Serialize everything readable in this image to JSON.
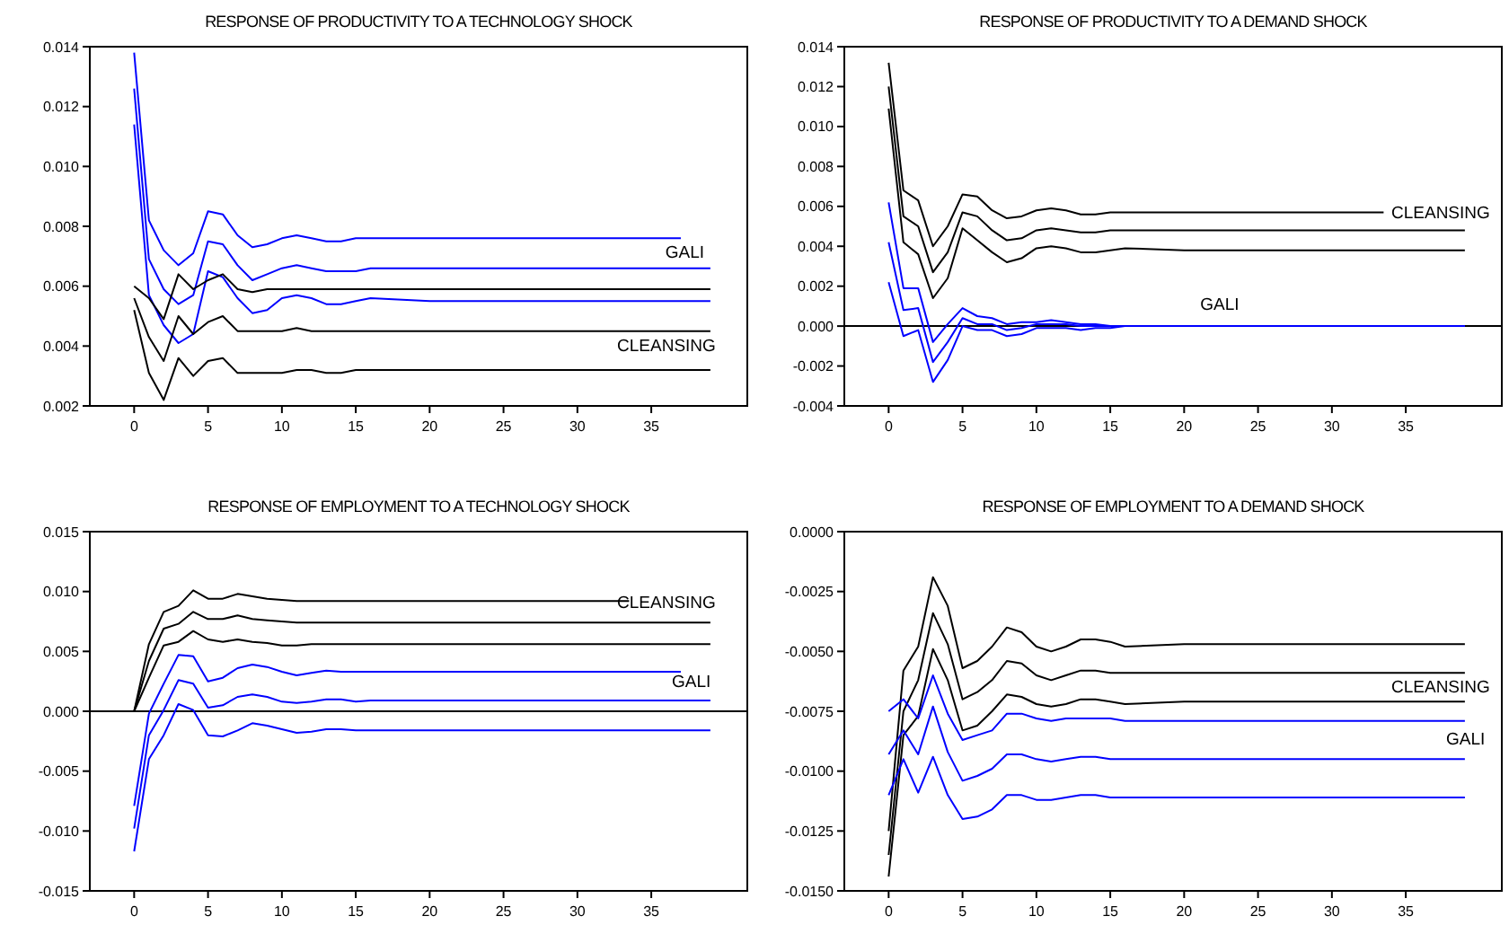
{
  "chart_data": [
    {
      "type": "line",
      "title": "RESPONSE OF PRODUCTIVITY TO A TECHNOLOGY SHOCK",
      "x": [
        0,
        1,
        2,
        3,
        4,
        5,
        6,
        7,
        8,
        9,
        10,
        11,
        12,
        13,
        14,
        15,
        16,
        20,
        25,
        30,
        35,
        39
      ],
      "xlim": [
        -3,
        41.5
      ],
      "xticks": [
        0,
        5,
        10,
        15,
        20,
        25,
        30,
        35
      ],
      "ylim": [
        0.002,
        0.014
      ],
      "yticks": [
        {
          "value": 0.002,
          "label": "0.002"
        },
        {
          "value": 0.004,
          "label": "0.004"
        },
        {
          "value": 0.006,
          "label": "0.006"
        },
        {
          "value": 0.008,
          "label": "0.008"
        },
        {
          "value": 0.01,
          "label": "0.010"
        },
        {
          "value": 0.012,
          "label": "0.012"
        },
        {
          "value": 0.014,
          "label": "0.014"
        }
      ],
      "grid": false,
      "line_style": "solid",
      "series": [
        {
          "color": "#0000ff",
          "x": [
            0,
            1,
            2,
            3,
            4,
            5,
            6,
            7,
            8,
            9,
            10,
            11,
            12,
            13,
            14,
            15,
            16,
            20,
            25,
            30,
            35,
            37
          ],
          "values": [
            0.0138,
            0.0082,
            0.0072,
            0.0067,
            0.0071,
            0.0085,
            0.0084,
            0.0077,
            0.0073,
            0.0074,
            0.0076,
            0.0077,
            0.0076,
            0.0075,
            0.0075,
            0.0076,
            0.0076,
            0.0076,
            0.0076,
            0.0076,
            0.0076,
            0.0076
          ]
        },
        {
          "color": "#0000ff",
          "values": [
            0.0126,
            0.0069,
            0.0059,
            0.0054,
            0.0057,
            0.0075,
            0.0074,
            0.0067,
            0.0062,
            0.0064,
            0.0066,
            0.0067,
            0.0066,
            0.0065,
            0.0065,
            0.0065,
            0.0066,
            0.0066,
            0.0066,
            0.0066,
            0.0066,
            0.0066
          ]
        },
        {
          "color": "#0000ff",
          "values": [
            0.0114,
            0.0057,
            0.0047,
            0.0041,
            0.0044,
            0.0065,
            0.0063,
            0.0056,
            0.0051,
            0.0052,
            0.0056,
            0.0057,
            0.0056,
            0.0054,
            0.0054,
            0.0055,
            0.0056,
            0.0055,
            0.0055,
            0.0055,
            0.0055,
            0.0055
          ]
        },
        {
          "color": "#000000",
          "values": [
            0.006,
            0.0056,
            0.0049,
            0.0064,
            0.0059,
            0.0062,
            0.0064,
            0.0059,
            0.0058,
            0.0059,
            0.0059,
            0.0059,
            0.0059,
            0.0059,
            0.0059,
            0.0059,
            0.0059,
            0.0059,
            0.0059,
            0.0059,
            0.0059,
            0.0059
          ]
        },
        {
          "color": "#000000",
          "values": [
            0.0056,
            0.0043,
            0.0035,
            0.005,
            0.0044,
            0.0048,
            0.005,
            0.0045,
            0.0045,
            0.0045,
            0.0045,
            0.0046,
            0.0045,
            0.0045,
            0.0045,
            0.0045,
            0.0045,
            0.0045,
            0.0045,
            0.0045,
            0.0045,
            0.0045
          ]
        },
        {
          "color": "#000000",
          "values": [
            0.0052,
            0.0031,
            0.0022,
            0.0036,
            0.003,
            0.0035,
            0.0036,
            0.0031,
            0.0031,
            0.0031,
            0.0031,
            0.0032,
            0.0032,
            0.0031,
            0.0031,
            0.0032,
            0.0032,
            0.0032,
            0.0032,
            0.0032,
            0.0032,
            0.0032
          ]
        }
      ],
      "annotations": [
        "GALI",
        "CLEANSING"
      ]
    },
    {
      "type": "line",
      "title": "RESPONSE OF PRODUCTIVITY TO A DEMAND SHOCK",
      "x": [
        0,
        1,
        2,
        3,
        4,
        5,
        6,
        7,
        8,
        9,
        10,
        11,
        12,
        13,
        14,
        15,
        16,
        20,
        25,
        30,
        35,
        39
      ],
      "xlim": [
        -3,
        41.5
      ],
      "xticks": [
        0,
        5,
        10,
        15,
        20,
        25,
        30,
        35
      ],
      "ylim": [
        -0.004,
        0.014
      ],
      "yticks": [
        {
          "value": -0.004,
          "label": "-0.004"
        },
        {
          "value": -0.002,
          "label": "-0.002"
        },
        {
          "value": 0,
          "label": "0.000"
        },
        {
          "value": 0.002,
          "label": "0.002"
        },
        {
          "value": 0.004,
          "label": "0.004"
        },
        {
          "value": 0.006,
          "label": "0.006"
        },
        {
          "value": 0.008,
          "label": "0.008"
        },
        {
          "value": 0.01,
          "label": "0.010"
        },
        {
          "value": 0.012,
          "label": "0.012"
        },
        {
          "value": 0.014,
          "label": "0.014"
        }
      ],
      "grid": false,
      "line_style": "solid",
      "ref_lines": [
        {
          "axis": "y",
          "value": 0,
          "color": "#000000"
        }
      ],
      "series": [
        {
          "color": "#000000",
          "x": [
            0,
            1,
            2,
            3,
            4,
            5,
            6,
            7,
            8,
            9,
            10,
            11,
            12,
            13,
            14,
            15,
            16,
            20,
            25,
            30,
            33.5
          ],
          "values": [
            0.0132,
            0.0068,
            0.0063,
            0.004,
            0.005,
            0.0066,
            0.0065,
            0.0058,
            0.0054,
            0.0055,
            0.0058,
            0.0059,
            0.0058,
            0.0056,
            0.0056,
            0.0057,
            0.0057,
            0.0057,
            0.0057,
            0.0057,
            0.0057
          ]
        },
        {
          "color": "#000000",
          "values": [
            0.012,
            0.0055,
            0.005,
            0.0027,
            0.0037,
            0.0057,
            0.0055,
            0.0048,
            0.0043,
            0.0044,
            0.0048,
            0.0049,
            0.0048,
            0.0047,
            0.0047,
            0.0048,
            0.0048,
            0.0048,
            0.0048,
            0.0048,
            0.0048,
            0.0048
          ]
        },
        {
          "color": "#000000",
          "values": [
            0.0109,
            0.0042,
            0.0036,
            0.0014,
            0.0024,
            0.0049,
            0.0043,
            0.0037,
            0.0032,
            0.0034,
            0.0039,
            0.004,
            0.0039,
            0.0037,
            0.0037,
            0.0038,
            0.0039,
            0.0038,
            0.0038,
            0.0038,
            0.0038,
            0.0038
          ]
        },
        {
          "color": "#0000ff",
          "values": [
            0.0062,
            0.0019,
            0.0019,
            -0.0008,
            0.0001,
            0.0009,
            0.0005,
            0.0004,
            0.0001,
            0.0002,
            0.0002,
            0.0003,
            0.0002,
            0.0001,
            0.0001,
            0,
            0,
            0,
            0,
            0,
            0,
            0
          ]
        },
        {
          "color": "#0000ff",
          "values": [
            0.0042,
            0.0008,
            0.0009,
            -0.0018,
            -0.0008,
            0.0004,
            0.0001,
            0.0001,
            -0.0002,
            -0.0001,
            0.0001,
            0.0001,
            0.0001,
            0,
            0,
            0,
            0,
            0,
            0,
            0,
            0,
            0
          ]
        },
        {
          "color": "#0000ff",
          "values": [
            0.0022,
            -0.0005,
            -0.0002,
            -0.0028,
            -0.0017,
            0,
            -0.0002,
            -0.0002,
            -0.0005,
            -0.0004,
            -0.0001,
            -0.0001,
            -0.0001,
            -0.0002,
            -0.0001,
            -0.0001,
            0,
            0,
            0,
            0,
            0,
            0
          ]
        }
      ],
      "annotations": [
        "CLEANSING",
        "GALI"
      ]
    },
    {
      "type": "line",
      "title": "RESPONSE OF EMPLOYMENT TO A TECHNOLOGY SHOCK",
      "x": [
        0,
        1,
        2,
        3,
        4,
        5,
        6,
        7,
        8,
        9,
        10,
        11,
        12,
        13,
        14,
        15,
        16,
        20,
        25,
        30,
        35,
        39
      ],
      "xlim": [
        -3,
        41.5
      ],
      "xticks": [
        0,
        5,
        10,
        15,
        20,
        25,
        30,
        35
      ],
      "ylim": [
        -0.015,
        0.015
      ],
      "yticks": [
        {
          "value": -0.015,
          "label": "-0.015"
        },
        {
          "value": -0.01,
          "label": "-0.010"
        },
        {
          "value": -0.005,
          "label": "-0.005"
        },
        {
          "value": 0,
          "label": "0.000"
        },
        {
          "value": 0.005,
          "label": "0.005"
        },
        {
          "value": 0.01,
          "label": "0.010"
        },
        {
          "value": 0.015,
          "label": "0.015"
        }
      ],
      "grid": false,
      "line_style": "solid",
      "ref_lines": [
        {
          "axis": "y",
          "value": 0,
          "color": "#000000"
        }
      ],
      "series": [
        {
          "color": "#000000",
          "x": [
            0,
            1,
            2,
            3,
            4,
            5,
            6,
            7,
            8,
            9,
            10,
            11,
            12,
            13,
            14,
            15,
            16,
            20,
            25,
            30,
            33.5
          ],
          "values": [
            0,
            0.0056,
            0.0083,
            0.0088,
            0.0101,
            0.0094,
            0.0094,
            0.0098,
            0.0096,
            0.0094,
            0.0093,
            0.0092,
            0.0092,
            0.0092,
            0.0092,
            0.0092,
            0.0092,
            0.0092,
            0.0092,
            0.0092,
            0.0092
          ]
        },
        {
          "color": "#000000",
          "values": [
            0,
            0.0042,
            0.0069,
            0.0073,
            0.0083,
            0.0077,
            0.0077,
            0.008,
            0.0077,
            0.0076,
            0.0075,
            0.0074,
            0.0074,
            0.0074,
            0.0074,
            0.0074,
            0.0074,
            0.0074,
            0.0074,
            0.0074,
            0.0074,
            0.0074
          ]
        },
        {
          "color": "#000000",
          "values": [
            0,
            0.0028,
            0.0055,
            0.0058,
            0.0067,
            0.006,
            0.0058,
            0.006,
            0.0058,
            0.0057,
            0.0055,
            0.0055,
            0.0056,
            0.0056,
            0.0056,
            0.0056,
            0.0056,
            0.0056,
            0.0056,
            0.0056,
            0.0056,
            0.0056
          ]
        },
        {
          "color": "#0000ff",
          "x": [
            0,
            1,
            2,
            3,
            4,
            5,
            6,
            7,
            8,
            9,
            10,
            11,
            12,
            13,
            14,
            15,
            16,
            20,
            25,
            30,
            35,
            37
          ],
          "values": [
            -0.0079,
            -0.0002,
            0.0023,
            0.0047,
            0.0046,
            0.0025,
            0.0028,
            0.0036,
            0.0039,
            0.0037,
            0.0033,
            0.003,
            0.0032,
            0.0034,
            0.0033,
            0.0033,
            0.0033,
            0.0033,
            0.0033,
            0.0033,
            0.0033,
            0.0033
          ]
        },
        {
          "color": "#0000ff",
          "values": [
            -0.0098,
            -0.002,
            0.0001,
            0.0026,
            0.0023,
            0.0003,
            0.0005,
            0.0012,
            0.0014,
            0.0012,
            0.0008,
            0.0007,
            0.0008,
            0.001,
            0.001,
            0.0008,
            0.0009,
            0.0009,
            0.0009,
            0.0009,
            0.0009,
            0.0009
          ]
        },
        {
          "color": "#0000ff",
          "values": [
            -0.0117,
            -0.004,
            -0.002,
            0.0006,
            0.0001,
            -0.002,
            -0.0021,
            -0.0016,
            -0.001,
            -0.0012,
            -0.0015,
            -0.0018,
            -0.0017,
            -0.0015,
            -0.0015,
            -0.0016,
            -0.0016,
            -0.0016,
            -0.0016,
            -0.0016,
            -0.0016,
            -0.0016
          ]
        }
      ],
      "annotations": [
        "CLEANSING",
        "GALI"
      ]
    },
    {
      "type": "line",
      "title": "RESPONSE OF EMPLOYMENT TO A DEMAND SHOCK",
      "x": [
        0,
        1,
        2,
        3,
        4,
        5,
        6,
        7,
        8,
        9,
        10,
        11,
        12,
        13,
        14,
        15,
        16,
        20,
        25,
        30,
        35,
        39
      ],
      "xlim": [
        -3,
        41.5
      ],
      "xticks": [
        0,
        5,
        10,
        15,
        20,
        25,
        30,
        35
      ],
      "ylim": [
        -0.015,
        0
      ],
      "yticks": [
        {
          "value": -0.015,
          "label": "-0.0150"
        },
        {
          "value": -0.0125,
          "label": "-0.0125"
        },
        {
          "value": -0.01,
          "label": "-0.0100"
        },
        {
          "value": -0.0075,
          "label": "-0.0075"
        },
        {
          "value": -0.005,
          "label": "-0.0050"
        },
        {
          "value": -0.0025,
          "label": "-0.0025"
        },
        {
          "value": 0,
          "label": "0.0000"
        }
      ],
      "grid": false,
      "line_style": "solid",
      "series": [
        {
          "color": "#000000",
          "values": [
            -0.0125,
            -0.0058,
            -0.0048,
            -0.0019,
            -0.0031,
            -0.0057,
            -0.0054,
            -0.0048,
            -0.004,
            -0.0042,
            -0.0048,
            -0.005,
            -0.0048,
            -0.0045,
            -0.0045,
            -0.0046,
            -0.0048,
            -0.0047,
            -0.0047,
            -0.0047,
            -0.0047,
            -0.0047
          ]
        },
        {
          "color": "#000000",
          "values": [
            -0.0135,
            -0.0075,
            -0.0062,
            -0.0034,
            -0.0047,
            -0.007,
            -0.0067,
            -0.0062,
            -0.0054,
            -0.0055,
            -0.006,
            -0.0062,
            -0.006,
            -0.0058,
            -0.0058,
            -0.0059,
            -0.0059,
            -0.0059,
            -0.0059,
            -0.0059,
            -0.0059,
            -0.0059
          ]
        },
        {
          "color": "#000000",
          "values": [
            -0.0144,
            -0.0085,
            -0.0077,
            -0.0049,
            -0.0062,
            -0.0083,
            -0.0081,
            -0.0075,
            -0.0068,
            -0.0069,
            -0.0072,
            -0.0073,
            -0.0072,
            -0.007,
            -0.007,
            -0.0071,
            -0.0072,
            -0.0071,
            -0.0071,
            -0.0071,
            -0.0071,
            -0.0071
          ]
        },
        {
          "color": "#0000ff",
          "values": [
            -0.0075,
            -0.007,
            -0.0078,
            -0.006,
            -0.0076,
            -0.0087,
            -0.0085,
            -0.0083,
            -0.0076,
            -0.0076,
            -0.0078,
            -0.0079,
            -0.0078,
            -0.0078,
            -0.0078,
            -0.0078,
            -0.0079,
            -0.0079,
            -0.0079,
            -0.0079,
            -0.0079,
            -0.0079
          ]
        },
        {
          "color": "#0000ff",
          "values": [
            -0.0093,
            -0.0083,
            -0.0093,
            -0.0073,
            -0.0092,
            -0.0104,
            -0.0102,
            -0.0099,
            -0.0093,
            -0.0093,
            -0.0095,
            -0.0096,
            -0.0095,
            -0.0094,
            -0.0094,
            -0.0095,
            -0.0095,
            -0.0095,
            -0.0095,
            -0.0095,
            -0.0095,
            -0.0095
          ]
        },
        {
          "color": "#0000ff",
          "values": [
            -0.011,
            -0.0095,
            -0.0109,
            -0.0094,
            -0.011,
            -0.012,
            -0.0119,
            -0.0116,
            -0.011,
            -0.011,
            -0.0112,
            -0.0112,
            -0.0111,
            -0.011,
            -0.011,
            -0.0111,
            -0.0111,
            -0.0111,
            -0.0111,
            -0.0111,
            -0.0111,
            -0.0111
          ]
        }
      ],
      "annotations": [
        "CLEANSING",
        "GALI"
      ]
    }
  ]
}
